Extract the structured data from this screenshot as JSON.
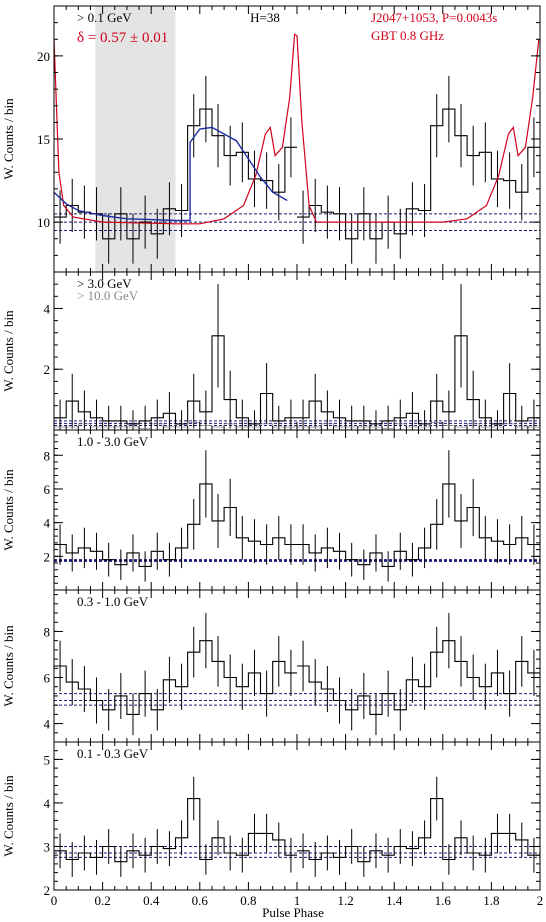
{
  "figure": {
    "xlabel": "Pulse Phase",
    "ylabel": "W. Counts / bin",
    "x_ticks": [
      "0",
      "0.2",
      "0.4",
      "0.6",
      "0.8",
      "1",
      "1.2",
      "1.4",
      "1.6",
      "1.8",
      "2"
    ],
    "colors": {
      "histogram": "#000000",
      "radio": "#d0021b",
      "fit": "#1f2ea0",
      "background_line": "#1a1a7a",
      "shade": "#e4e4e4",
      "secondary_label": "#8a8a8a"
    }
  },
  "chart_data": [
    {
      "type": "line",
      "panel": "> 0.1 GeV",
      "labels": {
        "energy": "> 0.1 GeV",
        "delta": "δ = 0.57 ± 0.01",
        "htest": "H=38",
        "pulsar": "J2047+1053, P=0.0043s",
        "radio": "GBT 0.8 GHz"
      },
      "ylim": [
        7,
        23
      ],
      "y_ticks": [
        10,
        15,
        20
      ],
      "shaded_phase": [
        0.17,
        0.5
      ],
      "bg_lines": [
        9.5,
        10,
        10.5
      ],
      "x": [
        0.025,
        0.075,
        0.125,
        0.175,
        0.225,
        0.275,
        0.325,
        0.375,
        0.425,
        0.475,
        0.525,
        0.575,
        0.625,
        0.675,
        0.725,
        0.775,
        0.825,
        0.875,
        0.925,
        0.975
      ],
      "series": [
        {
          "kind": "histogram",
          "values": [
            10.3,
            11.0,
            10.6,
            10.5,
            9.0,
            10.5,
            9.0,
            10.0,
            9.3,
            10.8,
            10.7,
            15.8,
            16.8,
            15.2,
            14.0,
            14.2,
            12.6,
            12.5,
            11.8,
            14.5
          ],
          "errors": [
            1.6,
            1.6,
            1.6,
            1.6,
            1.5,
            1.6,
            1.5,
            1.6,
            1.5,
            1.6,
            1.6,
            1.9,
            2.0,
            1.9,
            1.8,
            1.8,
            1.7,
            1.7,
            1.7,
            1.8
          ]
        },
        {
          "kind": "radio",
          "points": [
            [
              0.0,
              21.0
            ],
            [
              0.02,
              13.0
            ],
            [
              0.04,
              11.0
            ],
            [
              0.08,
              10.3
            ],
            [
              0.2,
              10.0
            ],
            [
              0.5,
              9.9
            ],
            [
              0.6,
              9.9
            ],
            [
              0.7,
              10.2
            ],
            [
              0.78,
              11.0
            ],
            [
              0.83,
              12.8
            ],
            [
              0.87,
              15.3
            ],
            [
              0.89,
              15.7
            ],
            [
              0.91,
              14.0
            ],
            [
              0.94,
              14.5
            ],
            [
              0.97,
              17.5
            ],
            [
              0.99,
              21.3
            ],
            [
              1.0,
              21.2
            ],
            [
              1.02,
              16.0
            ],
            [
              1.05,
              11.0
            ],
            [
              1.08,
              10.0
            ],
            [
              1.2,
              10.0
            ],
            [
              1.5,
              10.0
            ],
            [
              1.6,
              10.0
            ],
            [
              1.7,
              10.2
            ],
            [
              1.78,
              11.0
            ],
            [
              1.83,
              12.8
            ],
            [
              1.87,
              15.3
            ],
            [
              1.89,
              15.7
            ],
            [
              1.91,
              14.0
            ],
            [
              1.94,
              14.5
            ],
            [
              1.97,
              17.5
            ],
            [
              1.995,
              21.0
            ]
          ]
        },
        {
          "kind": "fit",
          "points": [
            [
              0.0,
              11.8
            ],
            [
              0.05,
              11.1
            ],
            [
              0.1,
              10.7
            ],
            [
              0.2,
              10.4
            ],
            [
              0.3,
              10.2
            ],
            [
              0.4,
              10.15
            ],
            [
              0.5,
              10.1
            ],
            [
              0.56,
              10.1
            ],
            [
              0.56,
              14.8
            ],
            [
              0.6,
              15.6
            ],
            [
              0.65,
              15.7
            ],
            [
              0.7,
              15.3
            ],
            [
              0.75,
              14.9
            ],
            [
              0.8,
              13.8
            ],
            [
              0.85,
              12.7
            ],
            [
              0.9,
              11.8
            ],
            [
              0.96,
              11.3
            ]
          ]
        }
      ]
    },
    {
      "type": "line",
      "panel": "> 3.0 GeV",
      "labels": {
        "energy": "> 3.0 GeV",
        "energy2": "> 10.0 GeV"
      },
      "ylim": [
        0,
        5.2
      ],
      "y_ticks": [
        2,
        4
      ],
      "bg_lines": [
        0.15,
        0.22,
        0.3
      ],
      "x": [
        0.025,
        0.075,
        0.125,
        0.175,
        0.225,
        0.275,
        0.325,
        0.375,
        0.425,
        0.475,
        0.525,
        0.575,
        0.625,
        0.675,
        0.725,
        0.775,
        0.825,
        0.875,
        0.925,
        0.975
      ],
      "series": [
        {
          "kind": "histogram",
          "values": [
            0.4,
            0.95,
            0.6,
            0.4,
            0.3,
            0.3,
            0.2,
            0.3,
            0.4,
            0.55,
            0.2,
            0.95,
            0.6,
            3.1,
            1.0,
            0.4,
            0.2,
            1.2,
            0.3,
            0.4
          ],
          "errors": [
            0.6,
            0.9,
            0.7,
            0.6,
            0.5,
            0.5,
            0.45,
            0.5,
            0.6,
            0.7,
            0.45,
            0.9,
            0.7,
            1.7,
            0.95,
            0.6,
            0.45,
            1.0,
            0.5,
            0.6
          ]
        },
        {
          "kind": "histogram_high",
          "values": [
            0.1,
            0.1,
            0.2,
            0.1,
            0.1,
            0.1,
            0.1,
            0.05,
            0.2,
            0.1,
            0.1,
            0.25,
            0.15,
            0.1,
            0.2,
            0.1,
            0.1,
            0.2,
            0.1,
            0.1
          ]
        }
      ]
    },
    {
      "type": "line",
      "panel": "1.0 - 3.0 GeV",
      "labels": {
        "energy": "1.0 - 3.0 GeV"
      },
      "ylim": [
        0,
        9.5
      ],
      "y_ticks": [
        2,
        4,
        6,
        8
      ],
      "bg_lines": [
        1.7,
        1.75,
        1.8
      ],
      "x": [
        0.025,
        0.075,
        0.125,
        0.175,
        0.225,
        0.275,
        0.325,
        0.375,
        0.425,
        0.475,
        0.525,
        0.575,
        0.625,
        0.675,
        0.725,
        0.775,
        0.825,
        0.875,
        0.925,
        0.975
      ],
      "series": [
        {
          "kind": "histogram",
          "values": [
            2.7,
            2.2,
            2.5,
            2.3,
            1.8,
            1.5,
            2.2,
            1.4,
            2.3,
            1.8,
            2.5,
            3.9,
            6.3,
            4.1,
            4.9,
            3.1,
            2.9,
            2.7,
            3.1,
            2.7
          ],
          "errors": [
            1.2,
            1.1,
            1.2,
            1.1,
            1.0,
            0.9,
            1.1,
            0.9,
            1.1,
            1.0,
            1.2,
            1.5,
            2.0,
            1.6,
            1.7,
            1.3,
            1.3,
            1.2,
            1.3,
            1.2
          ]
        }
      ]
    },
    {
      "type": "line",
      "panel": "0.3 - 1.0 GeV",
      "labels": {
        "energy": "0.3 - 1.0 GeV"
      },
      "ylim": [
        3.2,
        9.8
      ],
      "y_ticks": [
        4,
        6,
        8
      ],
      "bg_lines": [
        4.8,
        5.0,
        5.3
      ],
      "x": [
        0.025,
        0.075,
        0.125,
        0.175,
        0.225,
        0.275,
        0.325,
        0.375,
        0.425,
        0.475,
        0.525,
        0.575,
        0.625,
        0.675,
        0.725,
        0.775,
        0.825,
        0.875,
        0.925,
        0.975
      ],
      "series": [
        {
          "kind": "histogram",
          "values": [
            6.5,
            5.8,
            5.5,
            5.0,
            4.6,
            5.2,
            4.4,
            5.3,
            4.6,
            5.9,
            5.6,
            7.1,
            7.6,
            6.7,
            6.0,
            5.6,
            6.2,
            5.3,
            6.7,
            6.2
          ],
          "errors": [
            1.1,
            1.0,
            1.0,
            1.0,
            0.9,
            1.0,
            0.9,
            1.0,
            0.9,
            1.0,
            1.0,
            1.1,
            1.2,
            1.1,
            1.0,
            1.0,
            1.0,
            1.0,
            1.1,
            1.0
          ]
        }
      ]
    },
    {
      "type": "line",
      "panel": "0.1 - 0.3 GeV",
      "labels": {
        "energy": "0.1 - 0.3 GeV"
      },
      "ylim": [
        2.0,
        5.4
      ],
      "y_ticks": [
        2,
        3,
        4,
        5
      ],
      "bg_lines": [
        2.75,
        2.85,
        3.0
      ],
      "x": [
        0.025,
        0.075,
        0.125,
        0.175,
        0.225,
        0.275,
        0.325,
        0.375,
        0.425,
        0.475,
        0.525,
        0.575,
        0.625,
        0.675,
        0.725,
        0.775,
        0.825,
        0.875,
        0.925,
        0.975
      ],
      "series": [
        {
          "kind": "histogram",
          "values": [
            2.9,
            2.7,
            2.85,
            2.75,
            3.0,
            2.65,
            2.9,
            2.8,
            3.0,
            2.95,
            3.2,
            4.1,
            2.7,
            3.2,
            2.85,
            2.8,
            3.3,
            3.3,
            3.15,
            2.8
          ],
          "errors": [
            0.4,
            0.4,
            0.4,
            0.4,
            0.4,
            0.35,
            0.4,
            0.4,
            0.4,
            0.4,
            0.4,
            0.5,
            0.35,
            0.4,
            0.4,
            0.4,
            0.45,
            0.45,
            0.4,
            0.4
          ]
        }
      ]
    }
  ]
}
